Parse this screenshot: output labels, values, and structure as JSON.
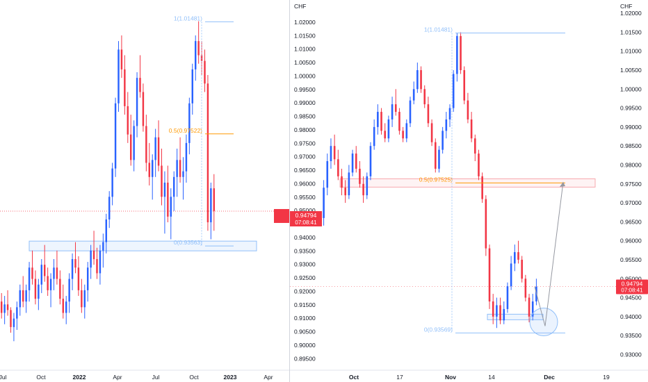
{
  "colors": {
    "up": "#2962ff",
    "down": "#f23645",
    "fib_mid": "#ff9800",
    "fib_line": "#90bff9",
    "price_label_bg": "#f23645",
    "axis_text": "#131722"
  },
  "chart_data": [
    {
      "type": "candlestick",
      "name": "left",
      "currency": "",
      "price_label": {
        "price": "0.94794",
        "countdown": "07:08:41"
      },
      "x_ticks": [
        "Jul",
        "Oct",
        "2022",
        "Apr",
        "Jul",
        "Oct",
        "2023",
        "Apr"
      ],
      "fib_levels": [
        {
          "label": "1(1.01481)",
          "price": 1.01481
        },
        {
          "label": "0.5(0.97522)",
          "price": 0.97522
        },
        {
          "label": "0(0.93563)",
          "price": 0.93563
        }
      ],
      "ylim": [
        0.8925,
        1.0225
      ],
      "y_ticks": [],
      "candles": [
        [
          0.916,
          0.919,
          0.91,
          0.912
        ],
        [
          0.912,
          0.918,
          0.908,
          0.915
        ],
        [
          0.915,
          0.92,
          0.911,
          0.913
        ],
        [
          0.913,
          0.914,
          0.905,
          0.907
        ],
        [
          0.907,
          0.912,
          0.902,
          0.91
        ],
        [
          0.91,
          0.916,
          0.906,
          0.914
        ],
        [
          0.914,
          0.922,
          0.911,
          0.92
        ],
        [
          0.92,
          0.925,
          0.914,
          0.916
        ],
        [
          0.916,
          0.922,
          0.912,
          0.92
        ],
        [
          0.92,
          0.93,
          0.916,
          0.928
        ],
        [
          0.928,
          0.934,
          0.922,
          0.924
        ],
        [
          0.924,
          0.927,
          0.915,
          0.917
        ],
        [
          0.917,
          0.924,
          0.913,
          0.922
        ],
        [
          0.922,
          0.931,
          0.919,
          0.929
        ],
        [
          0.929,
          0.936,
          0.923,
          0.925
        ],
        [
          0.925,
          0.928,
          0.918,
          0.92
        ],
        [
          0.92,
          0.926,
          0.914,
          0.924
        ],
        [
          0.924,
          0.931,
          0.92,
          0.928
        ],
        [
          0.928,
          0.934,
          0.922,
          0.924
        ],
        [
          0.924,
          0.927,
          0.915,
          0.917
        ],
        [
          0.917,
          0.922,
          0.91,
          0.912
        ],
        [
          0.912,
          0.918,
          0.908,
          0.916
        ],
        [
          0.916,
          0.926,
          0.912,
          0.924
        ],
        [
          0.924,
          0.933,
          0.92,
          0.931
        ],
        [
          0.931,
          0.937,
          0.926,
          0.928
        ],
        [
          0.928,
          0.932,
          0.918,
          0.92
        ],
        [
          0.92,
          0.924,
          0.912,
          0.914
        ],
        [
          0.914,
          0.922,
          0.91,
          0.92
        ],
        [
          0.92,
          0.93,
          0.916,
          0.928
        ],
        [
          0.928,
          0.936,
          0.924,
          0.934
        ],
        [
          0.934,
          0.941,
          0.929,
          0.931
        ],
        [
          0.931,
          0.935,
          0.924,
          0.926
        ],
        [
          0.926,
          0.936,
          0.922,
          0.934
        ],
        [
          0.934,
          0.94,
          0.928,
          0.937
        ],
        [
          0.937,
          0.947,
          0.933,
          0.945
        ],
        [
          0.945,
          0.955,
          0.942,
          0.953
        ],
        [
          0.953,
          0.965,
          0.95,
          0.963
        ],
        [
          0.963,
          0.988,
          0.96,
          0.986
        ],
        [
          0.986,
          1.008,
          0.983,
          1.005
        ],
        [
          1.005,
          1.01,
          0.995,
          0.998
        ],
        [
          0.998,
          1.003,
          0.982,
          0.985
        ],
        [
          0.985,
          0.99,
          0.972,
          0.975
        ],
        [
          0.975,
          0.982,
          0.964,
          0.966
        ],
        [
          0.966,
          0.98,
          0.962,
          0.978
        ],
        [
          0.978,
          0.997,
          0.974,
          0.995
        ],
        [
          0.995,
          1.003,
          0.988,
          0.99
        ],
        [
          0.99,
          0.993,
          0.976,
          0.978
        ],
        [
          0.978,
          0.982,
          0.962,
          0.965
        ],
        [
          0.965,
          0.972,
          0.957,
          0.96
        ],
        [
          0.96,
          0.968,
          0.952,
          0.966
        ],
        [
          0.966,
          0.977,
          0.96,
          0.974
        ],
        [
          0.974,
          0.98,
          0.962,
          0.964
        ],
        [
          0.964,
          0.97,
          0.95,
          0.953
        ],
        [
          0.953,
          0.962,
          0.94,
          0.958
        ],
        [
          0.958,
          0.964,
          0.944,
          0.946
        ],
        [
          0.946,
          0.956,
          0.938,
          0.953
        ],
        [
          0.953,
          0.962,
          0.948,
          0.96
        ],
        [
          0.96,
          0.97,
          0.953,
          0.966
        ],
        [
          0.966,
          0.974,
          0.958,
          0.96
        ],
        [
          0.96,
          0.967,
          0.952,
          0.962
        ],
        [
          0.962,
          0.975,
          0.958,
          0.972
        ],
        [
          0.972,
          0.988,
          0.968,
          0.986
        ],
        [
          0.986,
          1.0,
          0.982,
          0.998
        ],
        [
          0.998,
          1.01,
          0.994,
          1.008
        ],
        [
          1.008,
          1.015,
          1.0,
          1.003
        ],
        [
          1.003,
          1.008,
          0.996,
          1.001
        ],
        [
          1.001,
          1.005,
          0.99,
          0.993
        ],
        [
          0.993,
          0.996,
          0.941,
          0.944
        ],
        [
          0.944,
          0.958,
          0.938,
          0.956
        ],
        [
          0.956,
          0.961,
          0.941,
          0.948
        ]
      ]
    },
    {
      "type": "candlestick",
      "name": "right",
      "currency": "CHF",
      "price_label": {
        "price": "0.94794",
        "countdown": "07:08:41"
      },
      "x_ticks": [
        "Oct",
        "17",
        "Nov",
        "14",
        "Dec",
        "19"
      ],
      "fib_levels": [
        {
          "label": "1(1.01481)",
          "price": 1.01481
        },
        {
          "label": "0.5(0.97525)",
          "price": 0.97525
        },
        {
          "label": "0(0.93569)",
          "price": 0.93569
        }
      ],
      "ylim": [
        0.9255,
        1.0235
      ],
      "y_ticks": [
        "0.93000",
        "0.93500",
        "0.94000",
        "0.94500",
        "0.95000",
        "0.95500",
        "0.96000",
        "0.96500",
        "0.97000",
        "0.97500",
        "0.98000",
        "0.98500",
        "0.99000",
        "0.99500",
        "1.00000",
        "1.00500",
        "1.01000",
        "1.01500",
        "1.02000"
      ],
      "candles": [
        [
          0.966,
          0.976,
          0.964,
          0.974
        ],
        [
          0.974,
          0.983,
          0.972,
          0.981
        ],
        [
          0.981,
          0.987,
          0.979,
          0.985
        ],
        [
          0.985,
          0.988,
          0.98,
          0.9815
        ],
        [
          0.9815,
          0.984,
          0.976,
          0.977
        ],
        [
          0.977,
          0.979,
          0.972,
          0.974
        ],
        [
          0.974,
          0.976,
          0.97,
          0.972
        ],
        [
          0.972,
          0.98,
          0.971,
          0.978
        ],
        [
          0.978,
          0.984,
          0.977,
          0.983
        ],
        [
          0.983,
          0.985,
          0.978,
          0.979
        ],
        [
          0.979,
          0.981,
          0.974,
          0.975
        ],
        [
          0.975,
          0.977,
          0.97,
          0.972
        ],
        [
          0.972,
          0.978,
          0.971,
          0.977
        ],
        [
          0.977,
          0.986,
          0.976,
          0.985
        ],
        [
          0.985,
          0.992,
          0.984,
          0.99
        ],
        [
          0.99,
          0.996,
          0.988,
          0.994
        ],
        [
          0.994,
          0.995,
          0.988,
          0.989
        ],
        [
          0.989,
          0.991,
          0.986,
          0.987
        ],
        [
          0.987,
          0.993,
          0.986,
          0.992
        ],
        [
          0.992,
          0.998,
          0.99,
          0.996
        ],
        [
          0.996,
          1.0,
          0.993,
          0.994
        ],
        [
          0.994,
          0.995,
          0.988,
          0.989
        ],
        [
          0.989,
          0.99,
          0.986,
          0.987
        ],
        [
          0.987,
          0.992,
          0.986,
          0.991
        ],
        [
          0.991,
          0.998,
          0.99,
          0.997
        ],
        [
          0.997,
          1.002,
          0.996,
          1.0
        ],
        [
          1.0,
          1.007,
          0.999,
          1.005
        ],
        [
          1.005,
          1.006,
          0.999,
          1.0
        ],
        [
          1.0,
          1.001,
          0.995,
          0.996
        ],
        [
          0.996,
          0.998,
          0.99,
          0.991
        ],
        [
          0.991,
          0.992,
          0.985,
          0.986
        ],
        [
          0.986,
          0.987,
          0.978,
          0.979
        ],
        [
          0.979,
          0.985,
          0.978,
          0.984
        ],
        [
          0.984,
          0.99,
          0.983,
          0.989
        ],
        [
          0.989,
          0.994,
          0.987,
          0.992
        ],
        [
          0.992,
          0.996,
          0.99,
          0.995
        ],
        [
          0.995,
          1.005,
          0.994,
          1.004
        ],
        [
          1.004,
          1.0148,
          1.002,
          1.014
        ],
        [
          1.014,
          1.015,
          1.004,
          1.005
        ],
        [
          1.005,
          1.006,
          0.996,
          0.997
        ],
        [
          0.997,
          0.999,
          0.991,
          0.992
        ],
        [
          0.992,
          0.994,
          0.986,
          0.987
        ],
        [
          0.987,
          0.988,
          0.981,
          0.983
        ],
        [
          0.983,
          0.984,
          0.976,
          0.977
        ],
        [
          0.977,
          0.978,
          0.97,
          0.971
        ],
        [
          0.971,
          0.972,
          0.956,
          0.958
        ],
        [
          0.958,
          0.959,
          0.942,
          0.944
        ],
        [
          0.944,
          0.946,
          0.938,
          0.94
        ],
        [
          0.94,
          0.945,
          0.937,
          0.943
        ],
        [
          0.943,
          0.945,
          0.938,
          0.939
        ],
        [
          0.939,
          0.944,
          0.938,
          0.942
        ],
        [
          0.942,
          0.949,
          0.941,
          0.948
        ],
        [
          0.948,
          0.956,
          0.947,
          0.954
        ],
        [
          0.954,
          0.959,
          0.952,
          0.957
        ],
        [
          0.957,
          0.96,
          0.954,
          0.955
        ],
        [
          0.955,
          0.956,
          0.949,
          0.95
        ],
        [
          0.95,
          0.951,
          0.944,
          0.945
        ],
        [
          0.945,
          0.946,
          0.9385,
          0.94
        ],
        [
          0.94,
          0.946,
          0.939,
          0.944
        ],
        [
          0.944,
          0.95,
          0.943,
          0.9479
        ]
      ]
    }
  ]
}
